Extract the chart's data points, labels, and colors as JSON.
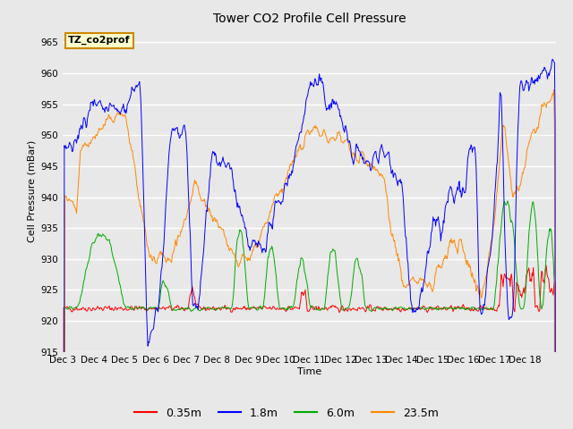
{
  "title": "Tower CO2 Profile Cell Pressure",
  "xlabel": "Time",
  "ylabel": "Cell Pressure (mBar)",
  "ylim": [
    915,
    967
  ],
  "yticks": [
    915,
    920,
    925,
    930,
    935,
    940,
    945,
    950,
    955,
    960,
    965
  ],
  "annotation_text": "TZ_co2prof",
  "annotation_bg": "#FFFFCC",
  "annotation_border": "#CC8800",
  "fig_bg": "#E8E8E8",
  "plot_bg": "#E8E8E8",
  "grid_color": "#FFFFFF",
  "colors": {
    "0.35m": "#FF0000",
    "1.8m": "#0000FF",
    "6.0m": "#00AA00",
    "23.5m": "#FF8800"
  },
  "legend_labels": [
    "0.35m",
    "1.8m",
    "6.0m",
    "23.5m"
  ],
  "xticklabels": [
    "Dec 3",
    "Dec 4",
    "Dec 5",
    "Dec 6",
    "Dec 7",
    "Dec 8",
    "Dec 9",
    "Dec 10",
    "Dec 11",
    "Dec 12",
    "Dec 13",
    "Dec 14",
    "Dec 15",
    "Dec 16",
    "Dec 17",
    "Dec 18"
  ],
  "figsize": [
    6.4,
    4.8
  ],
  "dpi": 100
}
